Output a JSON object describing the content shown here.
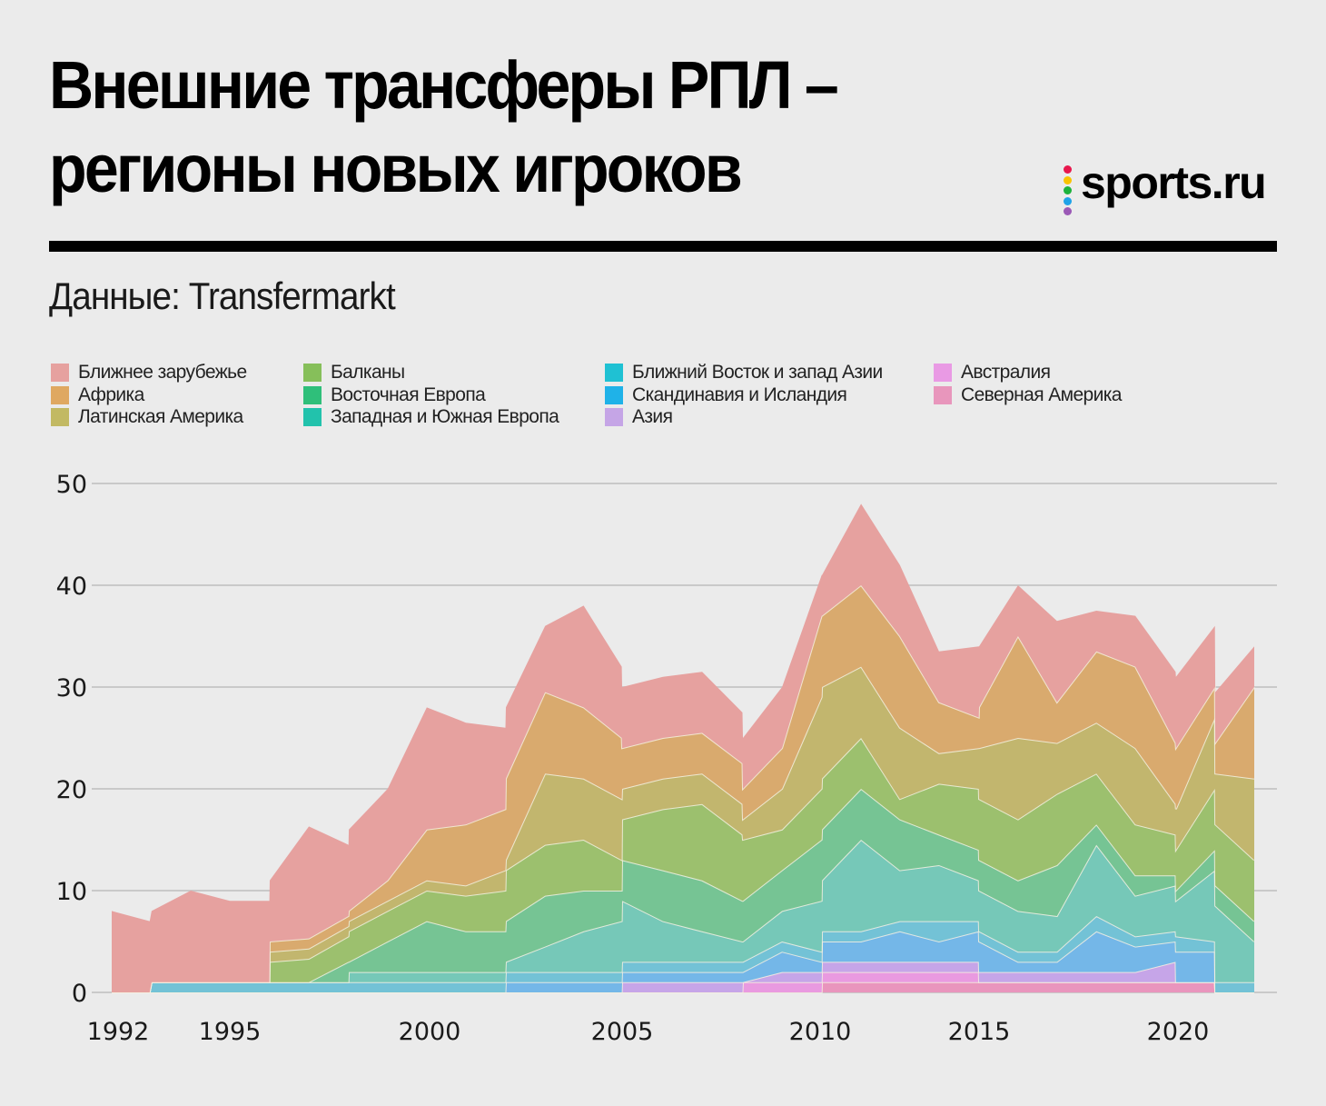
{
  "header": {
    "title_line1": "Внешние трансферы РПЛ –",
    "title_line2": "регионы новых игроков",
    "source": "Данные: Transfermarkt",
    "logo": {
      "text": "sports.ru",
      "dot_colors": [
        "#e8174d",
        "#f9c300",
        "#1db33c",
        "#1fa3e8",
        "#9b59b6"
      ]
    }
  },
  "chart_data": {
    "type": "area",
    "stacked": true,
    "title": "Внешние трансферы РПЛ – регионы новых игроков",
    "subtitle": "Данные: Transfermarkt",
    "xlabel": "",
    "ylabel": "",
    "ylim": [
      0,
      50
    ],
    "yticks": [
      0,
      10,
      20,
      30,
      40,
      50
    ],
    "xticks": [
      1992,
      1995,
      2000,
      2005,
      2010,
      2015,
      2020
    ],
    "xtick_labels": [
      "1992",
      "1995",
      "2000",
      "2005",
      "2010",
      "2015",
      "2020"
    ],
    "grid": "horizontal",
    "legend_position": "top",
    "x": [
      1991.83,
      1992.85,
      1992.9,
      1993.95,
      1995.0,
      1995.99,
      1996.0,
      1996.98,
      1997.97,
      1997.98,
      1998.95,
      1999.93,
      2000.94,
      2001.97,
      2001.98,
      2003.0,
      2004.0,
      2004.99,
      2005.0,
      2006.03,
      2007.02,
      2008.04,
      2008.05,
      2009.04,
      2010.05,
      2010.06,
      2011.29,
      2012.51,
      2013.74,
      2014.99,
      2015.0,
      2015.98,
      2016.96,
      2017.95,
      2018.93,
      2019.94,
      2019.95,
      2020.93,
      2020.94,
      2021.92
    ],
    "series": [
      {
        "name": "Северная Америка",
        "color": "#e995bd",
        "values": [
          0,
          0,
          0,
          0,
          0,
          0,
          0,
          0,
          0,
          0,
          0,
          0,
          0,
          0,
          0,
          0,
          0,
          0,
          0,
          0,
          0,
          0,
          0,
          0,
          0,
          1,
          1,
          1,
          1,
          1,
          1,
          1,
          1,
          1,
          1,
          1,
          1,
          1,
          0,
          0
        ]
      },
      {
        "name": "Австралия",
        "color": "#e99ae0",
        "values": [
          0,
          0,
          0,
          0,
          0,
          0,
          0,
          0,
          0,
          0,
          0,
          0,
          0,
          0,
          0,
          0,
          0,
          0,
          0,
          0,
          0,
          0,
          1,
          1,
          1,
          1,
          1,
          1,
          1,
          1,
          0,
          0,
          0,
          0,
          0,
          0,
          0,
          0,
          0,
          0
        ]
      },
      {
        "name": "Азия",
        "color": "#c6a5e8",
        "values": [
          0,
          0,
          0,
          0,
          0,
          0,
          0,
          0,
          0,
          0,
          0,
          0,
          0,
          0,
          0,
          0,
          0,
          0,
          1,
          1,
          1,
          1,
          0,
          1,
          1,
          1,
          1,
          1,
          1,
          1,
          1,
          1,
          1,
          1,
          1,
          2,
          0,
          0,
          0,
          0
        ]
      },
      {
        "name": "Скандинавия и Исландия",
        "color": "#74b7e8",
        "values": [
          0,
          0,
          0,
          0,
          0,
          0,
          0,
          0,
          0,
          0,
          0,
          0,
          0,
          0,
          1,
          1,
          1,
          1,
          1,
          1,
          1,
          1,
          1,
          2,
          1,
          2,
          2,
          3,
          2,
          3,
          3,
          1,
          1,
          4,
          2.5,
          2,
          3,
          3,
          0,
          0
        ]
      },
      {
        "name": "Ближний Восток и запад Азии",
        "color": "#73c2d6",
        "values": [
          0,
          0,
          1,
          1,
          1,
          1,
          1,
          1,
          1,
          1,
          1,
          1,
          1,
          1,
          1,
          1,
          1,
          1,
          1,
          1,
          1,
          1,
          1,
          1,
          1,
          1,
          1,
          1,
          2,
          1,
          1,
          1,
          1,
          1.5,
          1,
          1,
          1.5,
          1,
          1,
          1
        ]
      },
      {
        "name": "Западная и Южная Европа",
        "color": "#76c8b8",
        "values": [
          0,
          0,
          0,
          0,
          0,
          0,
          0,
          0,
          0,
          1,
          1,
          1,
          1,
          1,
          1,
          2.5,
          4,
          5,
          6,
          4,
          3,
          2,
          2,
          3,
          5,
          5,
          9,
          5,
          5.5,
          4,
          4,
          4,
          3.5,
          7,
          4,
          4.5,
          3.5,
          7,
          7.5,
          4
        ]
      },
      {
        "name": "Восточная Европа",
        "color": "#76c494",
        "values": [
          0,
          0,
          0,
          0,
          0,
          0,
          0,
          0,
          2,
          1,
          3,
          5,
          4,
          4,
          4,
          5,
          4,
          3,
          4,
          5,
          5,
          4,
          4,
          4,
          6,
          5,
          5,
          5,
          3,
          3,
          3,
          3,
          5,
          2,
          2,
          1,
          1,
          2,
          2,
          2
        ]
      },
      {
        "name": "Балканы",
        "color": "#9cc06e",
        "values": [
          0,
          0,
          0,
          0,
          0,
          0,
          2,
          2.3,
          2.5,
          3,
          3,
          3,
          3.5,
          4,
          5,
          5,
          5,
          3,
          4,
          6,
          7.5,
          6.5,
          6,
          4,
          5,
          5,
          5,
          2,
          5,
          6,
          6,
          6,
          7,
          5,
          5,
          4,
          4,
          6,
          6,
          6
        ]
      },
      {
        "name": "Латинская Америка",
        "color": "#c2b66e",
        "values": [
          0,
          0,
          0,
          0,
          0,
          0,
          1,
          1,
          1,
          1,
          1,
          1,
          1,
          2,
          1,
          7,
          6,
          6,
          3,
          3,
          3,
          3,
          2,
          4,
          9,
          9,
          7,
          7,
          3,
          4,
          5,
          8,
          5,
          5,
          7.5,
          3,
          4,
          7,
          5,
          8
        ]
      },
      {
        "name": "Африка",
        "color": "#d9aa6e",
        "values": [
          0,
          0,
          0,
          0,
          0,
          0,
          1,
          1,
          1,
          1,
          2,
          5,
          6,
          6,
          8,
          8,
          7,
          6,
          4,
          4,
          4,
          4,
          3,
          4,
          8,
          7,
          8,
          9,
          5,
          3,
          4,
          10,
          4,
          7,
          8,
          6,
          6,
          3,
          3,
          9
        ]
      },
      {
        "name": "Ближнее зарубежье",
        "color": "#e6a19f",
        "values": [
          8,
          7,
          7,
          9,
          8,
          8,
          6,
          11,
          7,
          8,
          9,
          12,
          10,
          8,
          7,
          6.5,
          10,
          7,
          6,
          6,
          6,
          5,
          5,
          6,
          4,
          4,
          8,
          7,
          5,
          7,
          6,
          5,
          8,
          4,
          5,
          7,
          7,
          6,
          5,
          4
        ]
      }
    ]
  },
  "legend": [
    {
      "label": "Ближнее зарубежье",
      "color": "#e6a19f"
    },
    {
      "label": "Африка",
      "color": "#dfa861"
    },
    {
      "label": "Латинская Америка",
      "color": "#c2b963"
    },
    {
      "label": "Балканы",
      "color": "#86bf5a"
    },
    {
      "label": "Восточная Европа",
      "color": "#2fbf7a"
    },
    {
      "label": "Западная и Южная Европа",
      "color": "#22c2ac"
    },
    {
      "label": "Ближний Восток и запад Азии",
      "color": "#1fc1d3"
    },
    {
      "label": "Скандинавия и Исландия",
      "color": "#1fb2e8"
    },
    {
      "label": "Азия",
      "color": "#c5a5e6"
    },
    {
      "label": "Австралия",
      "color": "#e99ae4"
    },
    {
      "label": "Северная Америка",
      "color": "#e896bc"
    }
  ]
}
